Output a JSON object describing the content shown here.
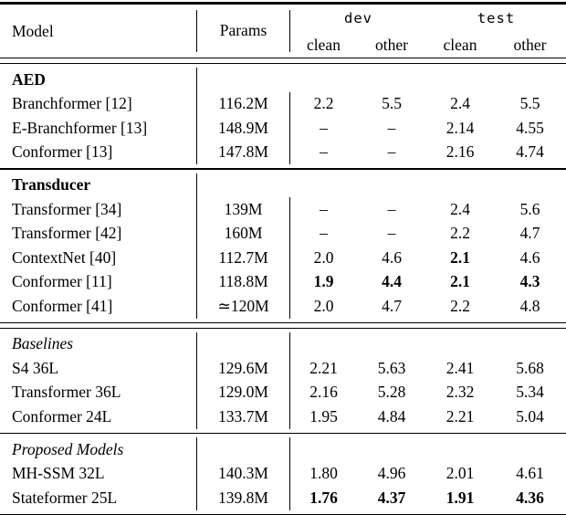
{
  "header": {
    "model": "Model",
    "params": "Params",
    "dev": "dev",
    "test": "test",
    "clean_dev": "clean",
    "other_dev": "other",
    "clean_test": "clean",
    "other_test": "other"
  },
  "sections": [
    {
      "label": "AED",
      "rows": [
        {
          "model": "Branchformer [12]",
          "params": "116.2M",
          "v": [
            "2.2",
            "5.5",
            "2.4",
            "5.5"
          ],
          "bold": [
            false,
            false,
            false,
            false
          ]
        },
        {
          "model": "E-Branchformer [13]",
          "params": "148.9M",
          "v": [
            "–",
            "–",
            "2.14",
            "4.55"
          ],
          "bold": [
            false,
            false,
            false,
            false
          ]
        },
        {
          "model": "Conformer [13]",
          "params": "147.8M",
          "v": [
            "–",
            "–",
            "2.16",
            "4.74"
          ],
          "bold": [
            false,
            false,
            false,
            false
          ]
        }
      ]
    },
    {
      "label": "Transducer",
      "rows": [
        {
          "model": "Transformer [34]",
          "params": "139M",
          "v": [
            "–",
            "–",
            "2.4",
            "5.6"
          ],
          "bold": [
            false,
            false,
            false,
            false
          ]
        },
        {
          "model": "Transformer [42]",
          "params": "160M",
          "v": [
            "–",
            "–",
            "2.2",
            "4.7"
          ],
          "bold": [
            false,
            false,
            false,
            false
          ]
        },
        {
          "model": "ContextNet [40]",
          "params": "112.7M",
          "v": [
            "2.0",
            "4.6",
            "2.1",
            "4.6"
          ],
          "bold": [
            false,
            false,
            true,
            false
          ]
        },
        {
          "model": "Conformer [11]",
          "params": "118.8M",
          "v": [
            "1.9",
            "4.4",
            "2.1",
            "4.3"
          ],
          "bold": [
            true,
            true,
            true,
            true
          ]
        },
        {
          "model": "Conformer [41]",
          "params": "≃120M",
          "v": [
            "2.0",
            "4.7",
            "2.2",
            "4.8"
          ],
          "bold": [
            false,
            false,
            false,
            false
          ]
        }
      ]
    },
    {
      "label": "Baselines",
      "rows": [
        {
          "model": "S4 36L",
          "params": "129.6M",
          "v": [
            "2.21",
            "5.63",
            "2.41",
            "5.68"
          ],
          "bold": [
            false,
            false,
            false,
            false
          ]
        },
        {
          "model": "Transformer 36L",
          "params": "129.0M",
          "v": [
            "2.16",
            "5.28",
            "2.32",
            "5.34"
          ],
          "bold": [
            false,
            false,
            false,
            false
          ]
        },
        {
          "model": "Conformer 24L",
          "params": "133.7M",
          "v": [
            "1.95",
            "4.84",
            "2.21",
            "5.04"
          ],
          "bold": [
            false,
            false,
            false,
            false
          ]
        }
      ]
    },
    {
      "label": "Proposed Models",
      "rows": [
        {
          "model": "MH-SSM 32L",
          "params": "140.3M",
          "v": [
            "1.80",
            "4.96",
            "2.01",
            "4.61"
          ],
          "bold": [
            false,
            false,
            false,
            false
          ]
        },
        {
          "model": "Stateformer 25L",
          "params": "139.8M",
          "v": [
            "1.76",
            "4.37",
            "1.91",
            "4.36"
          ],
          "bold": [
            true,
            true,
            true,
            true
          ]
        }
      ]
    }
  ]
}
